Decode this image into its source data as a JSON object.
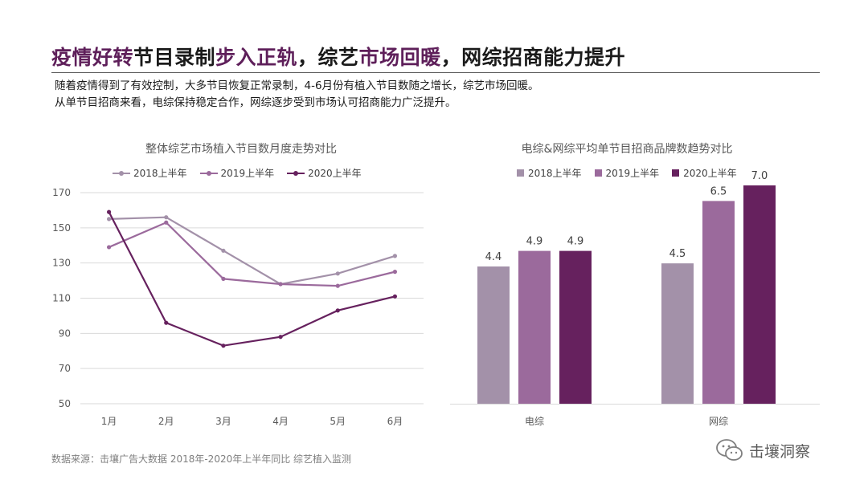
{
  "header": {
    "title_parts": [
      "疫情好转",
      "节目录制",
      "步入正轨",
      "，综艺",
      "市场回暖",
      "，网综招商能力提升"
    ],
    "subtitle_line1": "随着疫情得到了有效控制，大多节目恢复正常录制，4-6月份有植入节目数随之增长，综艺市场回暖。",
    "subtitle_line2": "从单节目招商来看，电综保持稳定合作，网综逐步受到市场认可招商能力广泛提升。"
  },
  "colors": {
    "accent": "#5e1f5a",
    "s2018": "#a391a9",
    "s2019": "#9b6a9c",
    "s2020": "#66215e",
    "grid": "#d9d9d9",
    "axis_text": "#595959"
  },
  "chart_data": [
    {
      "type": "line",
      "title": "整体综艺市场植入节目数月度走势对比",
      "categories": [
        "1月",
        "2月",
        "3月",
        "4月",
        "5月",
        "6月"
      ],
      "series": [
        {
          "name": "2018上半年",
          "values": [
            155,
            156,
            137,
            118,
            124,
            134
          ]
        },
        {
          "name": "2019上半年",
          "values": [
            139,
            153,
            121,
            118,
            117,
            125
          ]
        },
        {
          "name": "2020上半年",
          "values": [
            159,
            96,
            83,
            88,
            103,
            111
          ]
        }
      ],
      "ylim": [
        50,
        170
      ],
      "yticks": [
        "50",
        "70",
        "90",
        "110",
        "130",
        "150",
        "170"
      ],
      "grid": true,
      "legend": "top"
    },
    {
      "type": "bar",
      "title": "电综&网综平均单节目招商品牌数趋势对比",
      "categories": [
        "电综",
        "网综"
      ],
      "series": [
        {
          "name": "2018上半年",
          "values": [
            4.4,
            4.5
          ],
          "labels": [
            "4.4",
            "4.5"
          ]
        },
        {
          "name": "2019上半年",
          "values": [
            4.9,
            6.5
          ],
          "labels": [
            "4.9",
            "6.5"
          ]
        },
        {
          "name": "2020上半年",
          "values": [
            4.9,
            7.0
          ],
          "labels": [
            "4.9",
            "7.0"
          ]
        }
      ],
      "ylim": [
        0,
        7.5
      ],
      "legend": "top"
    }
  ],
  "footer": {
    "source": "数据来源：击壤广告大数据 2018年-2020年上半年同比 综艺植入监测",
    "logo_text": "击壤洞察",
    "logo_icon": "wechat-icon"
  }
}
